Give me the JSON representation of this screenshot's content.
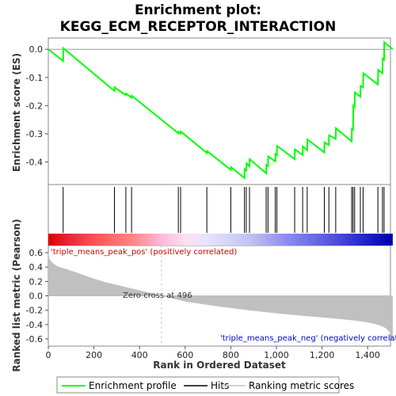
{
  "title_line1": "Enrichment plot:",
  "title_line2": "KEGG_ECM_RECEPTOR_INTERACTION",
  "ylabel_top": "Enrichment score (ES)",
  "ylabel_bottom": "Ranked list metric (Pearson)",
  "xlabel": "Rank in Ordered Dataset",
  "annotations": {
    "pos_label": "'triple_means_peak_pos' (positively correlated)",
    "neg_label": "'triple_means_peak_neg' (negatively correlated)",
    "zero_cross": "Zero cross at 496"
  },
  "legend": {
    "enrichment_profile": "Enrichment profile",
    "hits": "Hits",
    "ranking_metric": "Ranking metric scores"
  },
  "colors": {
    "es_line": "#00ff00",
    "hits": "#000000",
    "metric_fill": "#c0c0c0",
    "pos_text": "#cc0000",
    "neg_text": "#0000cc",
    "zero_line": "#d0d0d0"
  },
  "chart_data": {
    "type": "line",
    "xlim": [
      0,
      1500
    ],
    "x_ticks": [
      "0",
      "200",
      "400",
      "600",
      "800",
      "1,000",
      "1,200",
      "1,400"
    ],
    "x_tick_values": [
      0,
      200,
      400,
      600,
      800,
      1000,
      1200,
      1400
    ],
    "es_ylim": [
      -0.48,
      0.04
    ],
    "es_ticks": [
      "0.0",
      "-0.1",
      "-0.2",
      "-0.3",
      "-0.4"
    ],
    "es_tick_values": [
      0.0,
      -0.1,
      -0.2,
      -0.3,
      -0.4
    ],
    "metric_ylim": [
      -0.7,
      0.7
    ],
    "metric_ticks": [
      "0.6",
      "0.4",
      "0.2",
      "0.0",
      "-0.2",
      "-0.4",
      "-0.6"
    ],
    "metric_tick_values": [
      0.6,
      0.4,
      0.2,
      0.0,
      -0.2,
      -0.4,
      -0.6
    ],
    "zero_cross": 496,
    "n_genes": 1510,
    "es_x": [
      0,
      65,
      66,
      290,
      291,
      340,
      341,
      365,
      366,
      570,
      571,
      580,
      581,
      695,
      696,
      800,
      801,
      860,
      861,
      868,
      869,
      882,
      883,
      955,
      956,
      963,
      964,
      995,
      996,
      1002,
      1003,
      1080,
      1081,
      1115,
      1116,
      1135,
      1136,
      1210,
      1211,
      1230,
      1231,
      1260,
      1261,
      1330,
      1331,
      1336,
      1337,
      1343,
      1344,
      1368,
      1369,
      1380,
      1381,
      1445,
      1446,
      1465,
      1466,
      1472,
      1473,
      1510
    ],
    "es_y": [
      0.0,
      -0.042,
      0.004,
      -0.148,
      -0.135,
      -0.163,
      -0.157,
      -0.172,
      -0.165,
      -0.298,
      -0.293,
      -0.299,
      -0.292,
      -0.368,
      -0.361,
      -0.428,
      -0.418,
      -0.457,
      -0.425,
      -0.43,
      -0.405,
      -0.415,
      -0.39,
      -0.44,
      -0.41,
      -0.415,
      -0.38,
      -0.398,
      -0.372,
      -0.376,
      -0.343,
      -0.39,
      -0.355,
      -0.375,
      -0.345,
      -0.358,
      -0.32,
      -0.366,
      -0.33,
      -0.34,
      -0.305,
      -0.318,
      -0.28,
      -0.327,
      -0.282,
      -0.285,
      -0.2,
      -0.205,
      -0.153,
      -0.168,
      -0.13,
      -0.135,
      -0.085,
      -0.125,
      -0.073,
      -0.085,
      -0.033,
      -0.037,
      0.025,
      0.0
    ],
    "hits": [
      65,
      290,
      340,
      365,
      570,
      580,
      695,
      800,
      860,
      868,
      882,
      955,
      963,
      995,
      1002,
      1080,
      1115,
      1135,
      1210,
      1230,
      1260,
      1330,
      1336,
      1343,
      1368,
      1380,
      1445,
      1465,
      1472
    ],
    "metric_x": [
      0,
      5,
      15,
      30,
      50,
      80,
      120,
      180,
      250,
      330,
      420,
      496,
      600,
      750,
      900,
      1050,
      1200,
      1300,
      1380,
      1430,
      1460,
      1480,
      1495,
      1505,
      1510
    ],
    "metric_y": [
      0.62,
      0.52,
      0.47,
      0.43,
      0.4,
      0.37,
      0.33,
      0.26,
      0.19,
      0.13,
      0.06,
      0.0,
      -0.08,
      -0.15,
      -0.21,
      -0.26,
      -0.3,
      -0.33,
      -0.36,
      -0.39,
      -0.42,
      -0.45,
      -0.5,
      -0.58,
      -0.64
    ]
  }
}
